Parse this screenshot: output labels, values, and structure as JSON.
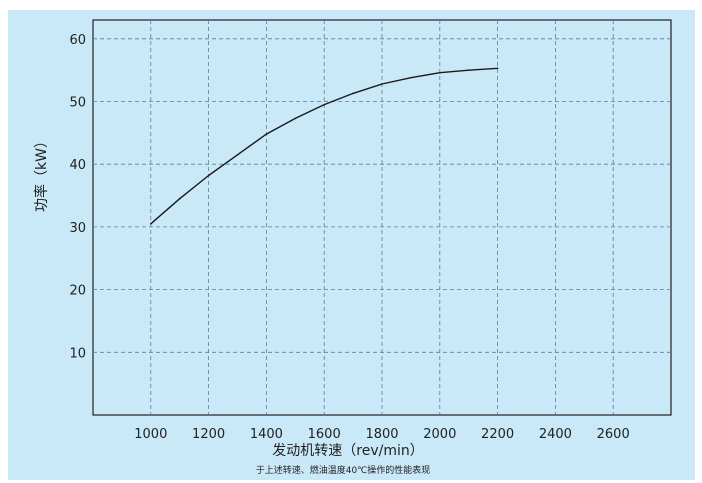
{
  "chart_data": {
    "type": "line",
    "xlabel": "发动机转速（rev/min）",
    "ylabel": "功率（kW）",
    "caption": "于上述转速、燃油温度40℃操作的性能表现",
    "xlim": [
      800,
      2800
    ],
    "ylim": [
      0,
      63
    ],
    "x_ticks": [
      1000,
      1200,
      1400,
      1600,
      1800,
      2000,
      2200,
      2400,
      2600
    ],
    "y_ticks": [
      10,
      20,
      30,
      40,
      50,
      60
    ],
    "grid": true,
    "series": [
      {
        "x": [
          1000,
          1100,
          1200,
          1300,
          1400,
          1500,
          1600,
          1700,
          1800,
          1900,
          2000,
          2100,
          2200
        ],
        "values": [
          30.5,
          34.5,
          38.2,
          41.5,
          44.8,
          47.3,
          49.5,
          51.3,
          52.8,
          53.8,
          54.6,
          55.0,
          55.3
        ]
      }
    ],
    "colors": {
      "background": "#c9e8f8",
      "plot": "#c9e8f8",
      "line": "#1a1a1a",
      "grid": "#5a7f94"
    }
  }
}
